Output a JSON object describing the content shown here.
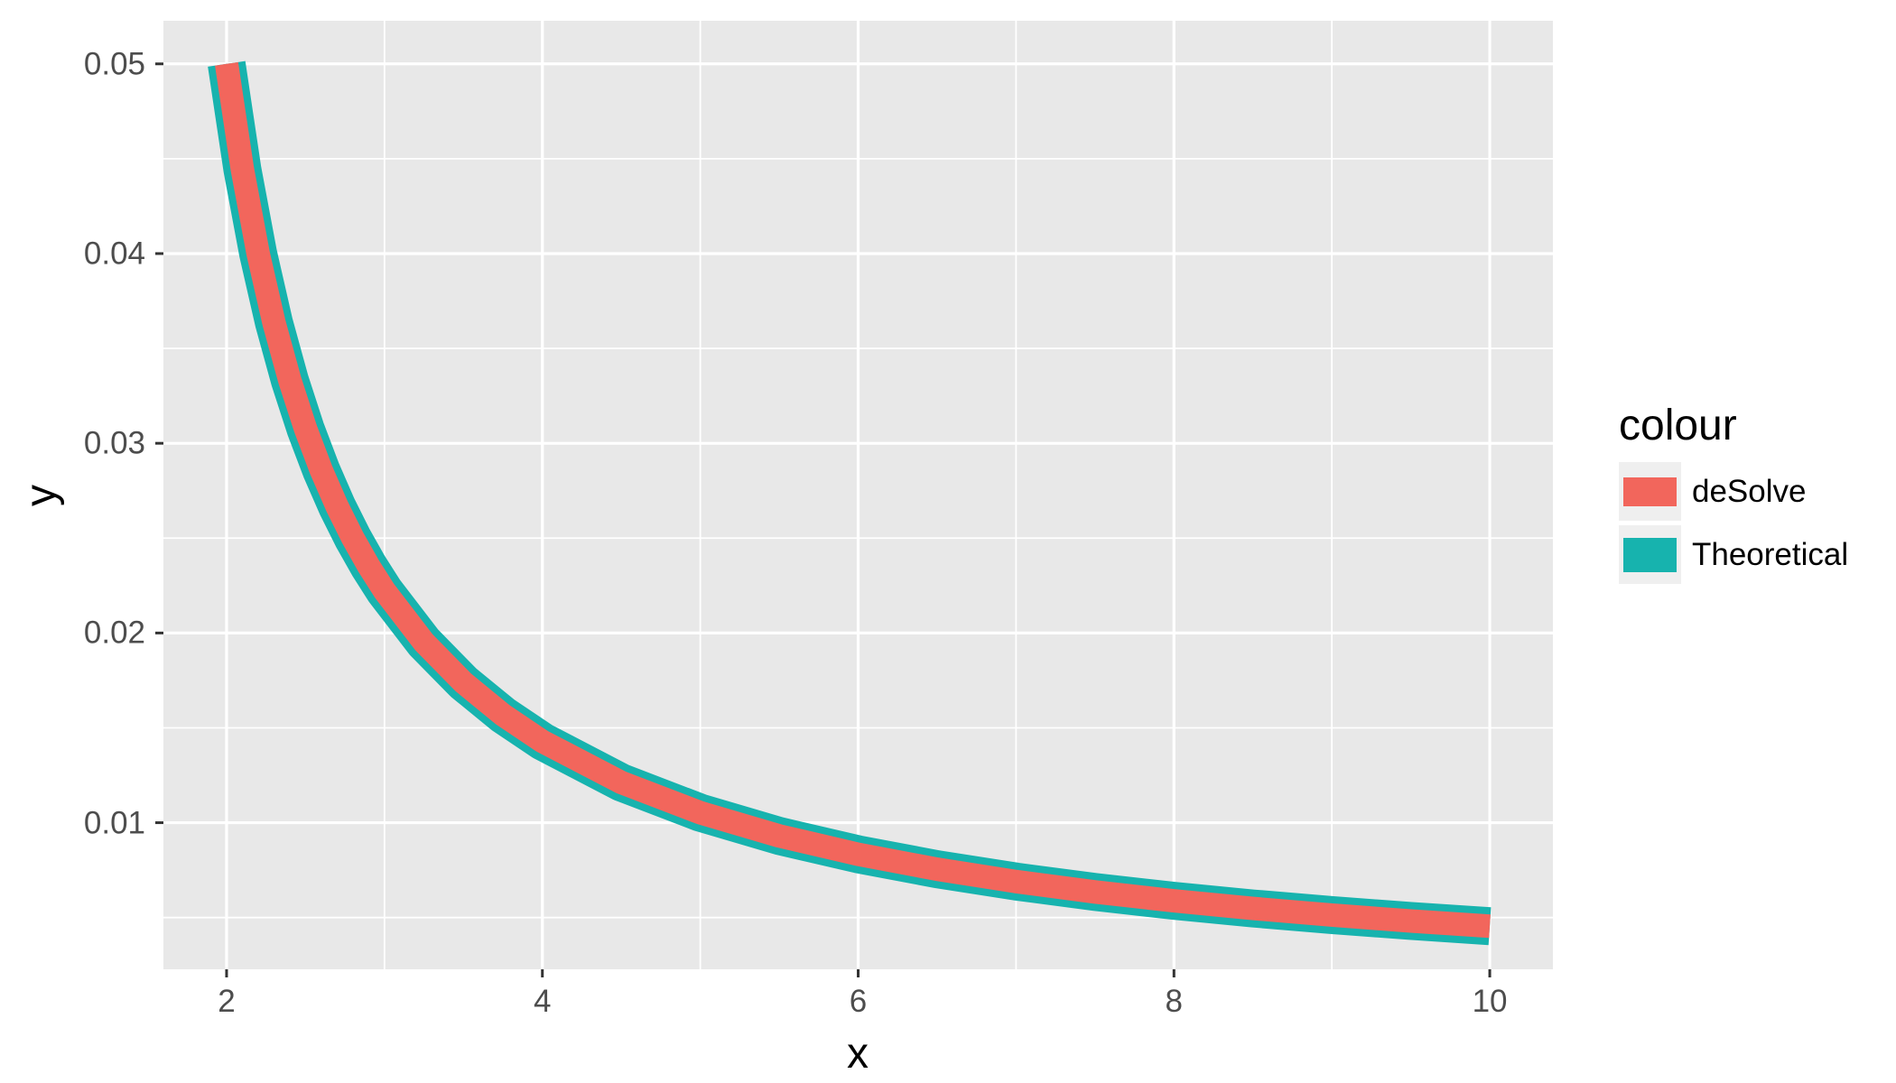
{
  "figure": {
    "x_axis_title": "x",
    "y_axis_title": "y",
    "x_tick_labels": [
      "2",
      "4",
      "6",
      "8",
      "10"
    ],
    "y_tick_labels": [
      "0.05",
      "0.04",
      "0.03",
      "0.02",
      "0.01"
    ],
    "legend": {
      "title": "colour",
      "entries": [
        {
          "label": "deSolve",
          "color": "#F2665C",
          "swatch_height": 32
        },
        {
          "label": "Theoretical",
          "color": "#17B3AE",
          "swatch_height": 38
        }
      ]
    },
    "colors": {
      "panel_background": "#E8E8E8",
      "gridline": "#FFFFFF",
      "tick_mark": "#333333",
      "tick_label": "#4D4D4D",
      "axis_title": "#000000",
      "legend_key_background": "#EFEFEF",
      "deSolve": "#F2665C",
      "theoretical": "#17B3AE"
    }
  },
  "chart_data": {
    "type": "line",
    "title": "",
    "xlabel": "x",
    "ylabel": "y",
    "grid": true,
    "legend_position": "right",
    "legend_title": "colour",
    "x_ticks": [
      2,
      4,
      6,
      8,
      10
    ],
    "y_ticks": [
      0.01,
      0.02,
      0.03,
      0.04,
      0.05
    ],
    "x_minor_ticks": [
      3,
      5,
      7,
      9
    ],
    "y_minor_ticks": [
      0.005,
      0.015,
      0.025,
      0.035,
      0.045
    ],
    "x_data_range": [
      2,
      10
    ],
    "y_data_range": [
      0.004545,
      0.05
    ],
    "axis_expansion": 0.05,
    "note": "Both series coincide; curve follows y = 1/(25x - 30). Theoretical (teal, thick) drawn beneath deSolve (red, thinner).",
    "x": [
      2.0,
      2.1,
      2.2,
      2.3,
      2.4,
      2.5,
      2.6,
      2.7,
      2.8,
      2.9,
      3.0,
      3.25,
      3.5,
      3.75,
      4.0,
      4.5,
      5.0,
      5.5,
      6.0,
      6.5,
      7.0,
      7.5,
      8.0,
      8.5,
      9.0,
      9.5,
      10.0
    ],
    "series": [
      {
        "name": "deSolve",
        "color": "#F2665C",
        "line_width": 26,
        "z": 2,
        "y": [
          0.05,
          0.044444,
          0.04,
          0.036364,
          0.033333,
          0.030769,
          0.028571,
          0.026667,
          0.025,
          0.023529,
          0.022222,
          0.019512,
          0.017391,
          0.015686,
          0.014286,
          0.012121,
          0.010526,
          0.009302,
          0.008333,
          0.007547,
          0.006897,
          0.006349,
          0.005882,
          0.005479,
          0.005128,
          0.004819,
          0.004545
        ]
      },
      {
        "name": "Theoretical",
        "color": "#17B3AE",
        "line_width": 42,
        "z": 1,
        "y": [
          0.05,
          0.044444,
          0.04,
          0.036364,
          0.033333,
          0.030769,
          0.028571,
          0.026667,
          0.025,
          0.023529,
          0.022222,
          0.019512,
          0.017391,
          0.015686,
          0.014286,
          0.012121,
          0.010526,
          0.009302,
          0.008333,
          0.007547,
          0.006897,
          0.006349,
          0.005882,
          0.005479,
          0.005128,
          0.004819,
          0.004545
        ]
      }
    ]
  }
}
